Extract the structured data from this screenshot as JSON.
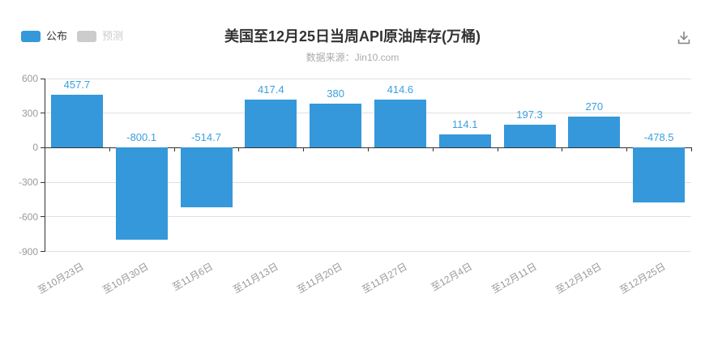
{
  "legend": [
    {
      "label": "公布",
      "color": "#3498db",
      "text_color": "#333333",
      "active": true
    },
    {
      "label": "预测",
      "color": "#cccccc",
      "text_color": "#cccccc",
      "active": false
    }
  ],
  "chart_data": {
    "type": "bar",
    "title": "美国至12月25日当周API原油库存(万桶)",
    "subtitle": "数据来源：Jin10.com",
    "categories": [
      "至10月23日",
      "至10月30日",
      "至11月6日",
      "至11月13日",
      "至11月20日",
      "至11月27日",
      "至12月4日",
      "至12月11日",
      "至12月18日",
      "至12月25日"
    ],
    "series": [
      {
        "name": "公布",
        "values": [
          457.7,
          -800.1,
          -514.7,
          417.4,
          380,
          414.6,
          114.1,
          197.3,
          270,
          -478.5
        ]
      }
    ],
    "ylim": [
      -900,
      600
    ],
    "yticks": [
      600,
      300,
      0,
      -300,
      -600,
      -900
    ],
    "bar_color": "#3498db",
    "value_label_color": "#3b9fe0",
    "axis_color": "#333333",
    "grid_color": "#e0e0e0",
    "tick_label_color": "#999999",
    "grid": true,
    "legend_position": "top-left",
    "x_label_rotation": 30
  }
}
